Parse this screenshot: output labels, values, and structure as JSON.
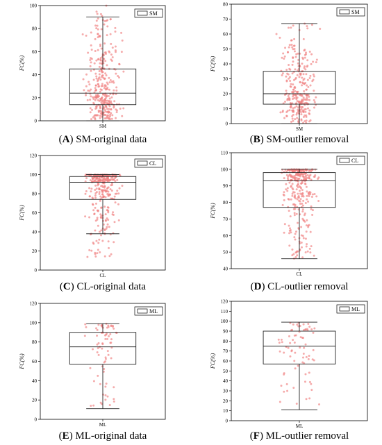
{
  "chart_data": [
    {
      "id": "A",
      "type": "box",
      "caption_letter": "A",
      "caption_text": " SM-original data",
      "ylabel": "FC(%)",
      "category": "SM",
      "legend": "SM",
      "ylim": [
        0,
        100
      ],
      "yticks": [
        0,
        20,
        40,
        60,
        80,
        100
      ],
      "box": {
        "whisker_low": 0,
        "q1": 14,
        "median": 24,
        "q3": 45,
        "whisker_high": 90
      },
      "points": {
        "min": 0,
        "max": 100,
        "count": 330,
        "skew": 1.6
      }
    },
    {
      "id": "B",
      "type": "box",
      "caption_letter": "B",
      "caption_text": " SM-outlier removal",
      "ylabel": "FC(%)",
      "category": "SM",
      "legend": "SM",
      "ylim": [
        0,
        80
      ],
      "yticks": [
        0,
        10,
        20,
        30,
        40,
        50,
        60,
        70,
        80
      ],
      "box": {
        "whisker_low": 0,
        "q1": 13,
        "median": 20,
        "q3": 35,
        "whisker_high": 67
      },
      "points": {
        "min": 0,
        "max": 67,
        "count": 290,
        "skew": 1.5
      }
    },
    {
      "id": "C",
      "type": "box",
      "caption_letter": "C",
      "caption_text": " CL-original data",
      "ylabel": "FC(%)",
      "category": "CL",
      "legend": "CL",
      "ylim": [
        0,
        120
      ],
      "yticks": [
        0,
        20,
        40,
        60,
        80,
        100,
        120
      ],
      "box": {
        "whisker_low": 38,
        "q1": 74,
        "median": 92,
        "q3": 98,
        "whisker_high": 100
      },
      "points": {
        "min": 8,
        "max": 100,
        "count": 330,
        "skew": 0.35
      }
    },
    {
      "id": "D",
      "type": "box",
      "caption_letter": "D",
      "caption_text": " CL-outlier removal",
      "ylabel": "FC(%)",
      "category": "CL",
      "legend": "CL",
      "ylim": [
        40,
        110
      ],
      "yticks": [
        40,
        50,
        60,
        70,
        80,
        90,
        100,
        110
      ],
      "box": {
        "whisker_low": 46,
        "q1": 77,
        "median": 93,
        "q3": 98,
        "whisker_high": 100
      },
      "points": {
        "min": 46,
        "max": 100,
        "count": 320,
        "skew": 0.35
      }
    },
    {
      "id": "E",
      "type": "box",
      "caption_letter": "E",
      "caption_text": " ML-original data",
      "ylabel": "FC(%)",
      "category": "ML",
      "legend": "ML",
      "ylim": [
        0,
        120
      ],
      "yticks": [
        0,
        20,
        40,
        60,
        80,
        100,
        120
      ],
      "box": {
        "whisker_low": 11,
        "q1": 57,
        "median": 75,
        "q3": 90,
        "whisker_high": 99
      },
      "points": {
        "min": 11,
        "max": 99,
        "count": 75,
        "skew": 0.6
      }
    },
    {
      "id": "F",
      "type": "box",
      "caption_letter": "F",
      "caption_text": " ML-outlier removal",
      "ylabel": "FC(%)",
      "category": "ML",
      "legend": "ML",
      "ylim": [
        0,
        120
      ],
      "yticks": [
        0,
        10,
        20,
        30,
        40,
        50,
        60,
        70,
        80,
        90,
        100,
        110,
        120
      ],
      "box": {
        "whisker_low": 11,
        "q1": 57,
        "median": 75,
        "q3": 90,
        "whisker_high": 99
      },
      "points": {
        "min": 11,
        "max": 99,
        "count": 75,
        "skew": 0.6
      }
    }
  ],
  "colors": {
    "points": "#f08080",
    "box": "#222222",
    "axis": "#000000"
  }
}
